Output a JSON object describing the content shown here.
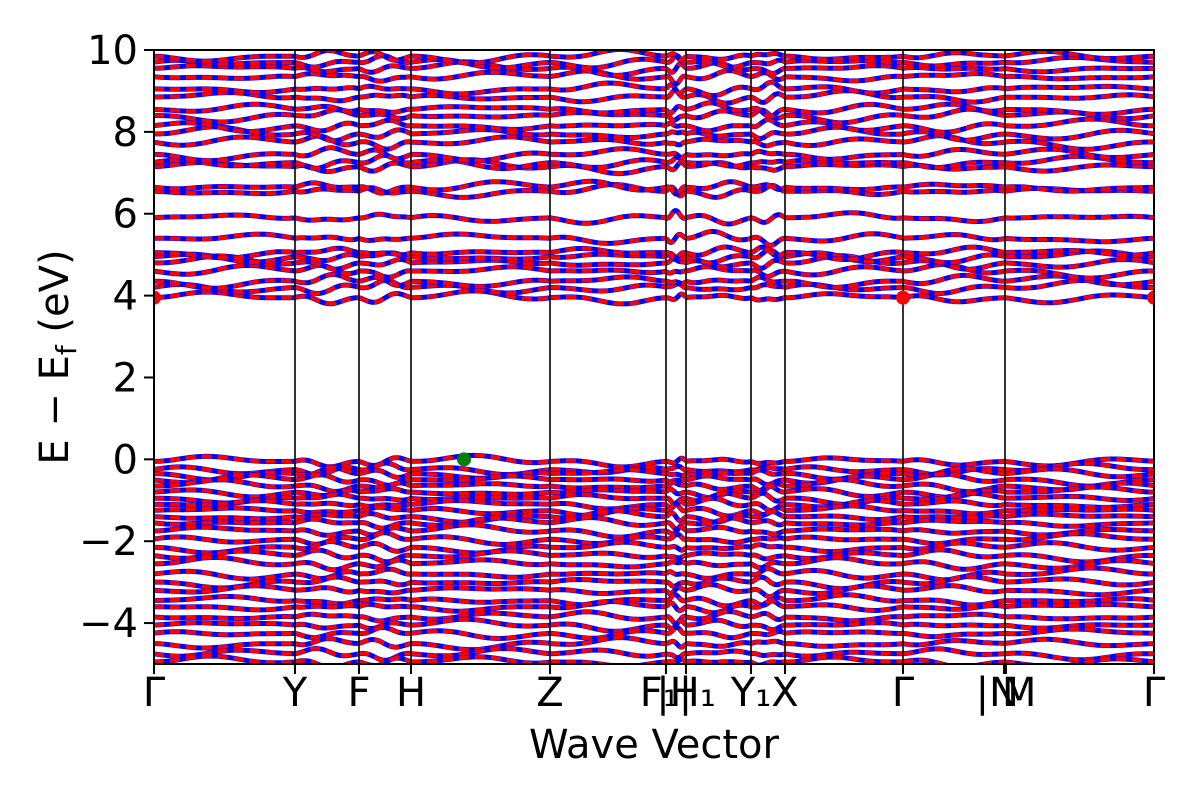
{
  "chart_data": {
    "type": "line",
    "title": "",
    "xlabel": "Wave Vector",
    "ylabel": "E − E",
    "ylabel_sub": "f",
    "ylabel_unit": " (eV)",
    "ylim": [
      -5,
      10
    ],
    "yticks": [
      -4,
      -2,
      0,
      2,
      4,
      6,
      8,
      10
    ],
    "ytick_labels": [
      "−4",
      "−2",
      "0",
      "2",
      "4",
      "6",
      "8",
      "10"
    ],
    "xlim": [
      0,
      1
    ],
    "kpoints": [
      {
        "label": "Γ",
        "x": 0.0
      },
      {
        "label": "Y",
        "x": 0.141
      },
      {
        "label": "F",
        "x": 0.205
      },
      {
        "label": "H",
        "x": 0.257
      },
      {
        "label": "Z",
        "x": 0.396
      },
      {
        "label": "F₁|",
        "x": 0.512
      },
      {
        "label": "|H₁",
        "x": 0.532
      },
      {
        "label": "Y₁",
        "x": 0.597
      },
      {
        "label": "X",
        "x": 0.631
      },
      {
        "label": "Γ",
        "x": 0.749
      },
      {
        "label": "N",
        "x": 0.85
      },
      {
        "label": "| M",
        "x": 0.852
      },
      {
        "label": "Γ",
        "x": 1.0
      }
    ],
    "segment_boundaries": [
      0.0,
      0.141,
      0.205,
      0.257,
      0.396,
      0.512,
      0.532,
      0.597,
      0.631,
      0.749,
      0.851,
      1.0
    ],
    "band_colors": {
      "spin_up": "#ff0000",
      "spin_down": "#0000ff"
    },
    "conduction_band_energies": [
      3.95,
      4.2,
      4.35,
      4.6,
      4.8,
      4.95,
      5.05,
      5.4,
      5.9,
      6.55,
      6.65,
      7.15,
      7.25,
      7.45,
      7.75,
      7.95,
      8.15,
      8.4,
      8.55,
      8.85,
      9.05,
      9.35,
      9.55,
      9.7,
      9.85
    ],
    "valence_band_energies": [
      -0.05,
      -0.25,
      -0.35,
      -0.5,
      -0.65,
      -0.8,
      -0.95,
      -1.1,
      -1.25,
      -1.4,
      -1.55,
      -1.75,
      -1.95,
      -2.15,
      -2.35,
      -2.55,
      -2.8,
      -3.0,
      -3.2,
      -3.45,
      -3.6,
      -3.85,
      -4.05,
      -4.25,
      -4.5,
      -4.75,
      -4.95
    ],
    "cbm_markers": [
      {
        "x": 0.0,
        "y": 3.95,
        "color": "#ff0000"
      },
      {
        "x": 0.749,
        "y": 3.95,
        "color": "#ff0000"
      },
      {
        "x": 1.0,
        "y": 3.95,
        "color": "#ff0000"
      }
    ],
    "vbm_marker": {
      "x": 0.31,
      "y": 0.0,
      "color": "#008000"
    },
    "grid": false,
    "legend": "none"
  }
}
